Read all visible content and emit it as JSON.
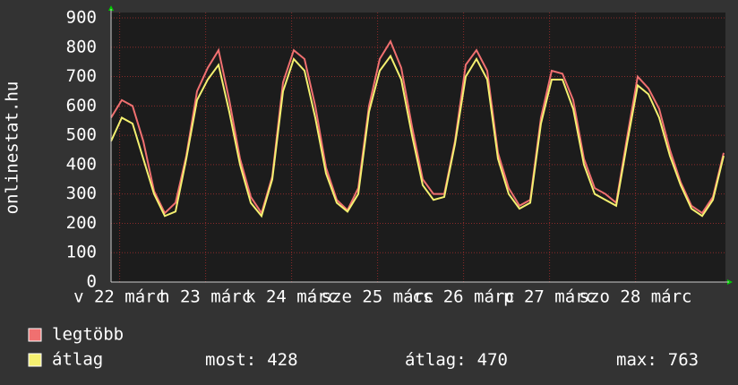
{
  "chart_data": {
    "type": "line",
    "ylabel": "onlinestat.hu",
    "xlim": [
      0,
      57
    ],
    "xticks": [
      {
        "value": 0.8,
        "label": "v 22 márc"
      },
      {
        "value": 8.8,
        "label": "h 23 márc"
      },
      {
        "value": 16.8,
        "label": "k 24 márc"
      },
      {
        "value": 24.8,
        "label": "sze 25 márc"
      },
      {
        "value": 32.8,
        "label": "cs 26 márc"
      },
      {
        "value": 40.8,
        "label": "p 27 márc"
      },
      {
        "value": 48.8,
        "label": "szo 28 márc"
      }
    ],
    "ylim": [
      0,
      900
    ],
    "yticks": [
      0,
      100,
      200,
      300,
      400,
      500,
      600,
      700,
      800,
      900
    ],
    "grid": true,
    "series": [
      {
        "name": "legtöbb",
        "color": "#f07070",
        "values": [
          560,
          620,
          600,
          480,
          310,
          235,
          270,
          430,
          650,
          730,
          790,
          620,
          420,
          290,
          235,
          360,
          680,
          790,
          760,
          600,
          390,
          280,
          245,
          320,
          600,
          760,
          820,
          730,
          530,
          350,
          300,
          300,
          480,
          740,
          790,
          720,
          440,
          320,
          260,
          280,
          560,
          720,
          710,
          620,
          420,
          320,
          300,
          270,
          490,
          700,
          660,
          590,
          450,
          340,
          260,
          235,
          290,
          440
        ]
      },
      {
        "name": "átlag",
        "color": "#f4f070",
        "values": [
          480,
          560,
          540,
          420,
          300,
          225,
          240,
          420,
          620,
          690,
          740,
          580,
          400,
          270,
          225,
          350,
          650,
          760,
          720,
          560,
          370,
          270,
          240,
          300,
          580,
          720,
          770,
          690,
          500,
          330,
          280,
          290,
          470,
          700,
          760,
          690,
          420,
          300,
          250,
          270,
          540,
          690,
          690,
          590,
          400,
          300,
          280,
          260,
          470,
          670,
          640,
          560,
          430,
          330,
          250,
          225,
          280,
          430
        ]
      }
    ],
    "stats": [
      {
        "label": "most:",
        "value": 428
      },
      {
        "label": "átlag:",
        "value": 470
      },
      {
        "label": "max:",
        "value": 763
      }
    ]
  }
}
